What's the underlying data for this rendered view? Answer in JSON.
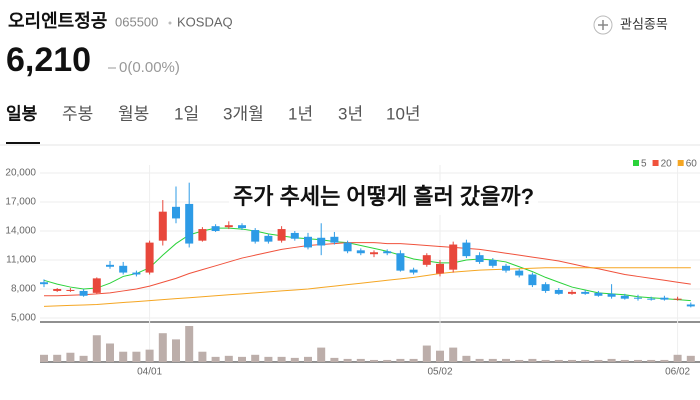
{
  "header": {
    "name": "오리엔트정공",
    "code": "065500",
    "market": "KOSDAQ",
    "watch": "관심종목",
    "price": "6,210",
    "change": "0(0.00%)"
  },
  "tabs": [
    "일봉",
    "주봉",
    "월봉",
    "1일",
    "3개월",
    "1년",
    "3년",
    "10년"
  ],
  "chart_data": {
    "type": "candlestick",
    "title": "주가 추세는 어떻게 흘러 갔을까?",
    "categories": [
      null,
      null,
      null,
      null,
      null,
      null,
      null,
      null,
      "04/01",
      null,
      null,
      null,
      null,
      null,
      null,
      null,
      null,
      null,
      null,
      null,
      null,
      null,
      null,
      null,
      null,
      null,
      null,
      null,
      null,
      null,
      "05/02",
      null,
      null,
      null,
      null,
      null,
      null,
      null,
      null,
      null,
      null,
      null,
      null,
      null,
      null,
      null,
      null,
      null,
      "06/02",
      null
    ],
    "open": [
      8700,
      7800,
      7800,
      7800,
      7600,
      10500,
      10400,
      9700,
      9700,
      13000,
      16500,
      16800,
      13000,
      14500,
      14400,
      14600,
      14100,
      13500,
      13000,
      13800,
      13400,
      13300,
      13400,
      12800,
      12000,
      11600,
      11900,
      11700,
      10000,
      10500,
      9600,
      10000,
      12800,
      11500,
      11000,
      10400,
      9900,
      9500,
      8500,
      7900,
      7500,
      7700,
      7600,
      7500,
      7300,
      7100,
      7000,
      7100,
      6900,
      6400
    ],
    "high": [
      9000,
      8100,
      8100,
      8000,
      9200,
      10900,
      10800,
      9900,
      13000,
      17200,
      18600,
      19000,
      14400,
      14700,
      15000,
      14800,
      14300,
      13700,
      14500,
      14000,
      13800,
      14800,
      13900,
      13000,
      12200,
      12000,
      12100,
      12000,
      10200,
      11700,
      11000,
      12900,
      13100,
      11800,
      11200,
      10600,
      10100,
      9700,
      8700,
      8100,
      7900,
      7900,
      7800,
      8500,
      7500,
      7400,
      7200,
      7300,
      7200,
      6600
    ],
    "low": [
      8200,
      7700,
      7700,
      7200,
      7500,
      10100,
      9500,
      9300,
      9500,
      12500,
      14800,
      12300,
      12900,
      13900,
      14200,
      14100,
      12700,
      12700,
      12800,
      13000,
      12100,
      11500,
      12600,
      11700,
      11500,
      11300,
      11500,
      9800,
      9500,
      10300,
      9300,
      9700,
      11200,
      10600,
      10200,
      9700,
      9200,
      8200,
      7600,
      7400,
      7400,
      7400,
      7200,
      7000,
      6900,
      6800,
      6800,
      6800,
      6800,
      6100
    ],
    "close": [
      8500,
      8000,
      7900,
      7300,
      9100,
      10300,
      9700,
      9500,
      12800,
      16000,
      15300,
      12700,
      14200,
      14000,
      14600,
      14300,
      12900,
      12900,
      14200,
      13200,
      12300,
      12500,
      12800,
      11900,
      11700,
      11800,
      11700,
      9900,
      9700,
      11500,
      10600,
      12600,
      11400,
      10800,
      10400,
      9900,
      9400,
      8400,
      7800,
      7500,
      7700,
      7500,
      7300,
      7200,
      7000,
      7000,
      6900,
      6900,
      7000,
      6200
    ],
    "volume": [
      7,
      7,
      9,
      6,
      26,
      18,
      10,
      10,
      12,
      28,
      22,
      35,
      10,
      5,
      6,
      5,
      7,
      5,
      5,
      4,
      5,
      14,
      4,
      3,
      3,
      2,
      2,
      3,
      3,
      16,
      11,
      14,
      6,
      3,
      3,
      3,
      2,
      3,
      2,
      2,
      2,
      2,
      2,
      3,
      2,
      2,
      2,
      2,
      7,
      6
    ],
    "up_color": "#e8473b",
    "down_color": "#2d9be6",
    "volume_color": "#bcaeaa",
    "series": [
      {
        "name": "5",
        "color": "#2bd23a",
        "values": [
          8900,
          8500,
          8200,
          8000,
          8100,
          8600,
          9300,
          9600,
          10200,
          11500,
          12700,
          13600,
          14000,
          14300,
          14300,
          14200,
          14000,
          13700,
          13500,
          13300,
          13200,
          13100,
          12900,
          12800,
          12500,
          12200,
          11900,
          11500,
          11100,
          10900,
          10700,
          10700,
          11000,
          11100,
          11000,
          10800,
          10300,
          9800,
          9200,
          8700,
          8200,
          7900,
          7600,
          7500,
          7400,
          7200,
          7100,
          7000,
          6900,
          6800
        ]
      },
      {
        "name": "20",
        "color": "#f0523c",
        "values": [
          7300,
          7300,
          7350,
          7400,
          7500,
          7600,
          7800,
          8000,
          8300,
          8700,
          9100,
          9600,
          10000,
          10400,
          10800,
          11200,
          11500,
          11800,
          12100,
          12300,
          12500,
          12600,
          12700,
          12800,
          12800,
          12800,
          12700,
          12700,
          12600,
          12500,
          12400,
          12300,
          12200,
          12100,
          11900,
          11700,
          11500,
          11300,
          11100,
          10900,
          10600,
          10300,
          10100,
          9800,
          9500,
          9300,
          9100,
          8900,
          8700,
          8500
        ]
      },
      {
        "name": "60",
        "color": "#f5a623",
        "values": [
          6200,
          6250,
          6300,
          6350,
          6400,
          6500,
          6600,
          6700,
          6800,
          6900,
          7000,
          7100,
          7200,
          7300,
          7400,
          7500,
          7600,
          7700,
          7800,
          7900,
          8000,
          8150,
          8300,
          8450,
          8600,
          8750,
          8900,
          9050,
          9200,
          9400,
          9600,
          9750,
          9850,
          9950,
          10000,
          10050,
          10100,
          10150,
          10200,
          10200,
          10200,
          10200,
          10200,
          10200,
          10200,
          10200,
          10200,
          10200,
          10200,
          10200
        ]
      }
    ],
    "ylim": [
      5000,
      20000
    ],
    "yticks": [
      {
        "value": 5000,
        "label": "5,000"
      },
      {
        "value": 8000,
        "label": "8,000"
      },
      {
        "value": 11000,
        "label": "11,000"
      },
      {
        "value": 14000,
        "label": "14,000"
      },
      {
        "value": 17000,
        "label": "17,000"
      },
      {
        "value": 20000,
        "label": "20,000"
      }
    ],
    "grid": true
  }
}
